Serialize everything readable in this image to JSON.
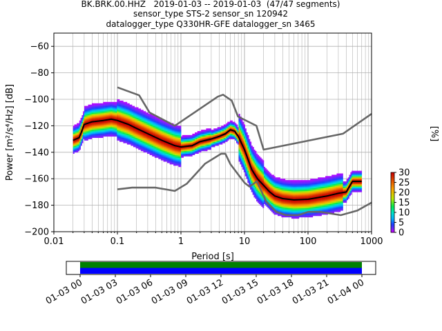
{
  "title_lines": [
    "BK.BRK.00.HHZ   2019-01-03 -- 2019-01-03  (47/47 segments)",
    "sensor_type STS-2 sensor_sn 120942",
    "datalogger_type Q330HR-GFE datalogger_sn 3465"
  ],
  "chart_data": [
    {
      "type": "heatmap",
      "title": "BK.BRK.00.HHZ   2019-01-03 -- 2019-01-03  (47/47 segments)",
      "xlabel": "Period [s]",
      "ylabel": "Power [m²/s⁴/Hz] [dB]",
      "xscale": "log",
      "xlim": [
        0.01,
        1000
      ],
      "ylim": [
        -200,
        -50
      ],
      "x_ticks": [
        "0.01",
        "0.1",
        "1",
        "10",
        "100",
        "1000"
      ],
      "y_ticks": [
        "−60",
        "−80",
        "−100",
        "−120",
        "−140",
        "−160",
        "−180",
        "−200"
      ],
      "grid": true,
      "colorbar": {
        "label": "[%]",
        "range": [
          0,
          30
        ],
        "ticks": [
          "0",
          "5",
          "10",
          "15",
          "20",
          "25",
          "30"
        ]
      },
      "series": [
        {
          "role": "noise-model-high",
          "color": "#666666",
          "points": [
            [
              0.1,
              -91
            ],
            [
              0.22,
              -97
            ],
            [
              0.32,
              -110
            ],
            [
              0.8,
              -120
            ],
            [
              3.8,
              -98
            ],
            [
              4.6,
              -96.5
            ],
            [
              6.3,
              -101
            ],
            [
              7.9,
              -113
            ],
            [
              15.4,
              -120
            ],
            [
              20,
              -138
            ],
            [
              354.8,
              -126
            ],
            [
              1000,
              -111
            ]
          ]
        },
        {
          "role": "noise-model-low",
          "color": "#666666",
          "points": [
            [
              0.1,
              -168
            ],
            [
              0.17,
              -166.7
            ],
            [
              0.4,
              -166.7
            ],
            [
              0.8,
              -169.2
            ],
            [
              1.24,
              -163.7
            ],
            [
              2.4,
              -148.6
            ],
            [
              4.3,
              -141.1
            ],
            [
              5,
              -141.1
            ],
            [
              6,
              -149
            ],
            [
              10,
              -163
            ],
            [
              12,
              -166
            ],
            [
              15.6,
              -162
            ],
            [
              21.9,
              -177
            ],
            [
              31.6,
              -185
            ],
            [
              45,
              -187.5
            ],
            [
              70,
              -187.5
            ],
            [
              101,
              -185
            ],
            [
              154,
              -185
            ],
            [
              328,
              -187.5
            ],
            [
              600,
              -184
            ],
            [
              1000,
              -178
            ]
          ]
        },
        {
          "role": "mean",
          "color": "#000000",
          "points": [
            [
              0.02,
              -131
            ],
            [
              0.025,
              -129
            ],
            [
              0.027,
              -125
            ],
            [
              0.03,
              -119
            ],
            [
              0.04,
              -117
            ],
            [
              0.06,
              -116
            ],
            [
              0.08,
              -115
            ],
            [
              0.1,
              -116
            ],
            [
              0.15,
              -119
            ],
            [
              0.2,
              -122
            ],
            [
              0.3,
              -126
            ],
            [
              0.5,
              -131
            ],
            [
              0.8,
              -135
            ],
            [
              1,
              -136
            ],
            [
              1.5,
              -135
            ],
            [
              2,
              -132
            ],
            [
              3,
              -130
            ],
            [
              4,
              -128
            ],
            [
              5,
              -126
            ],
            [
              6,
              -123
            ],
            [
              7,
              -124
            ],
            [
              8,
              -128
            ],
            [
              10,
              -138
            ],
            [
              13,
              -153
            ],
            [
              16,
              -160
            ],
            [
              20,
              -165
            ],
            [
              25,
              -170
            ],
            [
              30,
              -173
            ],
            [
              40,
              -175
            ],
            [
              60,
              -176
            ],
            [
              100,
              -175.5
            ],
            [
              200,
              -173
            ],
            [
              300,
              -171
            ],
            [
              400,
              -170
            ],
            [
              500,
              -162
            ],
            [
              700,
              -162
            ]
          ]
        }
      ]
    },
    {
      "type": "timeline",
      "x_ticks": [
        "01-03 00",
        "01-03 03",
        "01-03 06",
        "01-03 09",
        "01-03 12",
        "01-03 15",
        "01-03 18",
        "01-03 21",
        "01-04 00"
      ],
      "bands": [
        {
          "role": "upper",
          "color": "#008000",
          "start_hour": 0,
          "end_hour": 24
        },
        {
          "role": "lower",
          "color": "#0000ff",
          "start_hour": 0,
          "end_hour": 24
        }
      ]
    }
  ]
}
